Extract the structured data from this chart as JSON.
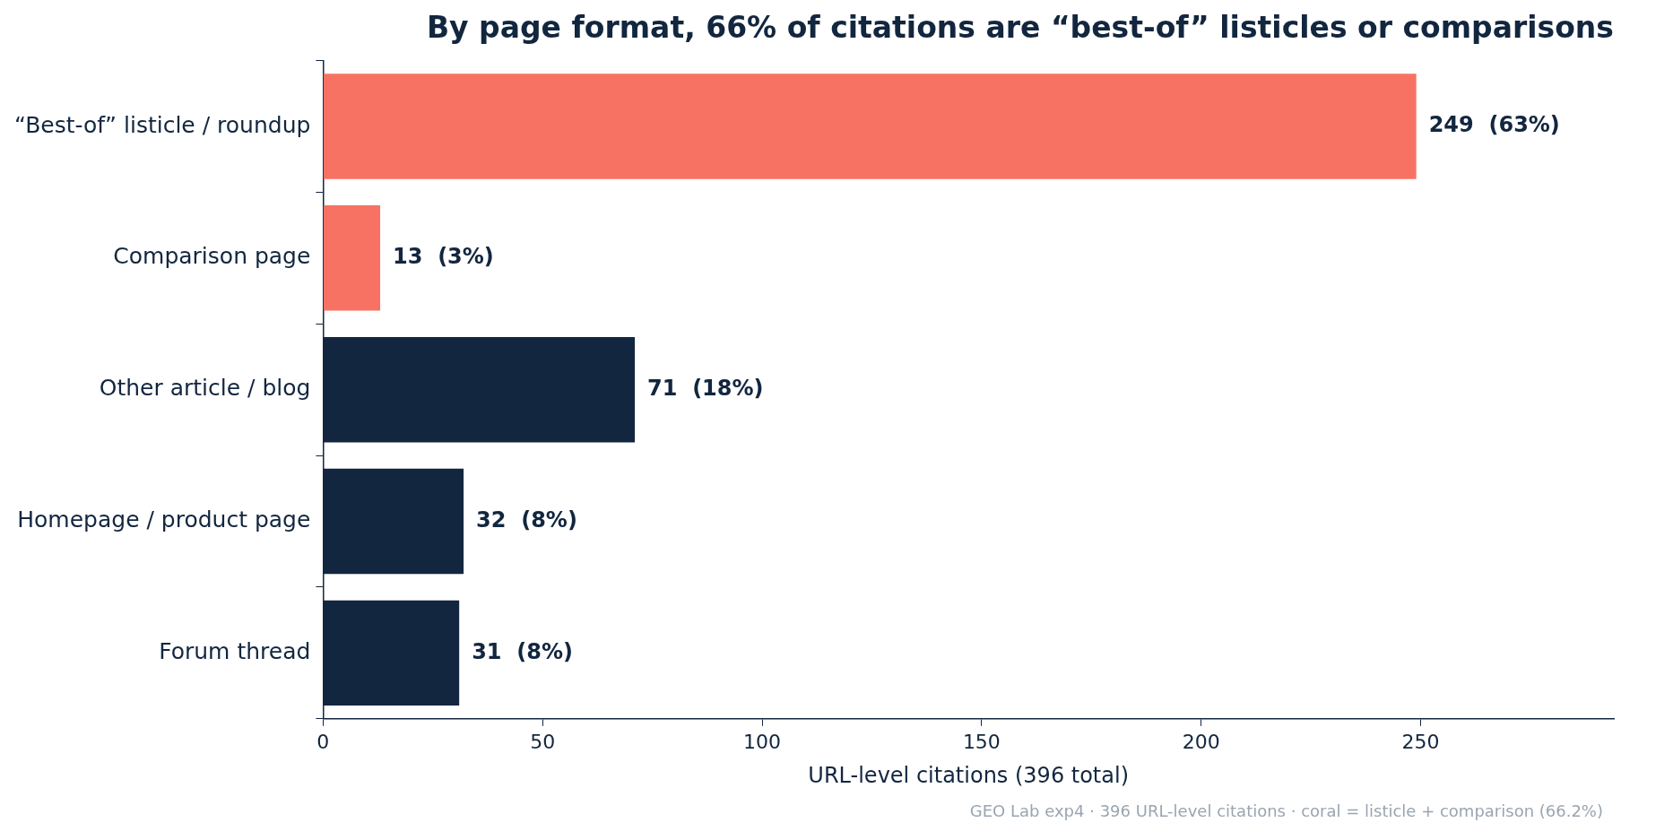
{
  "chart_data": {
    "type": "bar",
    "orientation": "horizontal",
    "title": "By page format, 66% of citations are “best-of” listicles or comparisons",
    "categories": [
      "“Best-of” listicle / roundup",
      "Comparison page",
      "Other article / blog",
      "Homepage / product page",
      "Forum thread"
    ],
    "values": [
      249,
      13,
      71,
      32,
      31
    ],
    "colors": [
      "#f77262",
      "#f77262",
      "#12263f",
      "#12263f",
      "#12263f"
    ],
    "value_labels": [
      "249  (63%)",
      "13  (3%)",
      "71  (18%)",
      "32  (8%)",
      "31  (8%)"
    ],
    "xlabel": "URL-level citations (396 total)",
    "xlim": [
      0,
      294
    ],
    "xticks": [
      0,
      50,
      100,
      150,
      200,
      250
    ],
    "grid": false,
    "legend": false,
    "annotations": [
      "GEO Lab exp4 · 396 URL-level citations · coral = listicle + comparison (66.2%)"
    ]
  }
}
